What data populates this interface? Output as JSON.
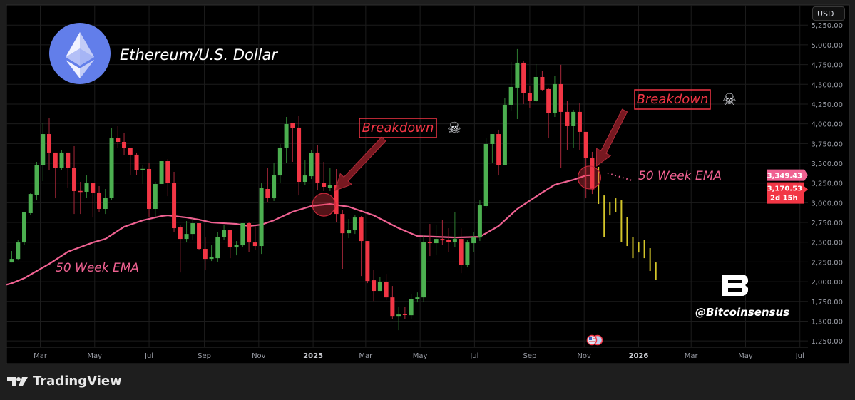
{
  "header": {
    "title": "Ethereum/U.S. Dollar",
    "currency_button": "USD"
  },
  "footer": {
    "brand": "TradingView"
  },
  "watermark": {
    "handle": "@Bitcoinsensus",
    "logo_letter": "B"
  },
  "chart_data": {
    "type": "candlestick",
    "title": "Ethereum/U.S. Dollar",
    "interval": "1W",
    "ylim": [
      1170,
      5505
    ],
    "xlim": [
      "2024-01-23",
      "2026-07-10"
    ],
    "grid": true,
    "yticks": [
      {
        "value": 1250,
        "label": "1,250.00"
      },
      {
        "value": 1500,
        "label": "1,500.00"
      },
      {
        "value": 1750,
        "label": "1,750.00"
      },
      {
        "value": 2000,
        "label": "2,000.00"
      },
      {
        "value": 2250,
        "label": "2,250.00"
      },
      {
        "value": 2500,
        "label": "2,500.00"
      },
      {
        "value": 2750,
        "label": "2,750.00"
      },
      {
        "value": 3000,
        "label": "3,000.00"
      },
      {
        "value": 3250,
        "label": "3,250.00"
      },
      {
        "value": 3500,
        "label": "3,500.00"
      },
      {
        "value": 3750,
        "label": "3,750.00"
      },
      {
        "value": 4000,
        "label": "4,000.00"
      },
      {
        "value": 4250,
        "label": "4,250.00"
      },
      {
        "value": 4500,
        "label": "4,500.00"
      },
      {
        "value": 4750,
        "label": "4,750.00"
      },
      {
        "value": 5000,
        "label": "5,000.00"
      },
      {
        "value": 5250,
        "label": "5,250.00"
      }
    ],
    "xticks": [
      {
        "date": "2024-03-01",
        "label": "Mar"
      },
      {
        "date": "2024-05-01",
        "label": "May"
      },
      {
        "date": "2024-07-01",
        "label": "Jul"
      },
      {
        "date": "2024-09-01",
        "label": "Sep"
      },
      {
        "date": "2024-11-01",
        "label": "Nov"
      },
      {
        "date": "2025-01-01",
        "label": "2025",
        "year": true
      },
      {
        "date": "2025-03-01",
        "label": "Mar"
      },
      {
        "date": "2025-05-01",
        "label": "May"
      },
      {
        "date": "2025-07-01",
        "label": "Jul"
      },
      {
        "date": "2025-09-01",
        "label": "Sep"
      },
      {
        "date": "2025-11-01",
        "label": "Nov"
      },
      {
        "date": "2026-01-01",
        "label": "2026",
        "year": true
      },
      {
        "date": "2026-03-01",
        "label": "Mar"
      },
      {
        "date": "2026-05-01",
        "label": "May"
      },
      {
        "date": "2026-07-01",
        "label": "Jul"
      }
    ],
    "candles": {
      "start": "2024-01-29",
      "ohlc_fields": [
        "open",
        "high",
        "low",
        "close"
      ],
      "ohlc": [
        [
          2244,
          2389,
          2244,
          2289
        ],
        [
          2289,
          2524,
          2271,
          2497
        ],
        [
          2497,
          2886,
          2470,
          2877
        ],
        [
          2868,
          3120,
          2849,
          3111
        ],
        [
          3102,
          3518,
          3030,
          3482
        ],
        [
          3482,
          4006,
          3274,
          3870
        ],
        [
          3870,
          4078,
          3410,
          3636
        ],
        [
          3636,
          3636,
          3057,
          3437
        ],
        [
          3446,
          3663,
          3419,
          3636
        ],
        [
          3636,
          3636,
          3193,
          3446
        ],
        [
          3437,
          3717,
          2858,
          3148
        ],
        [
          3150,
          3265,
          2858,
          3140
        ],
        [
          3139,
          3346,
          3066,
          3256
        ],
        [
          3247,
          3247,
          2813,
          3130
        ],
        [
          3130,
          3211,
          2877,
          2922
        ],
        [
          2922,
          3175,
          2858,
          3066
        ],
        [
          3066,
          3943,
          3039,
          3816
        ],
        [
          3816,
          3970,
          3699,
          3771
        ],
        [
          3771,
          3880,
          3600,
          3690
        ],
        [
          3690,
          3690,
          3355,
          3609
        ],
        [
          3609,
          3636,
          3355,
          3410
        ],
        [
          3410,
          3482,
          3238,
          3430
        ],
        [
          3428,
          3509,
          2822,
          2922
        ],
        [
          2922,
          3265,
          2822,
          3238
        ],
        [
          3238,
          3527,
          3238,
          3527
        ],
        [
          3527,
          3554,
          3084,
          3256
        ],
        [
          3256,
          3392,
          2633,
          2678
        ],
        [
          2687,
          2714,
          2117,
          2542
        ],
        [
          2542,
          2768,
          2497,
          2605
        ],
        [
          2605,
          2804,
          2533,
          2741
        ],
        [
          2741,
          2741,
          2398,
          2416
        ],
        [
          2416,
          2560,
          2145,
          2289
        ],
        [
          2289,
          2461,
          2262,
          2316
        ],
        [
          2298,
          2624,
          2253,
          2569
        ],
        [
          2569,
          2723,
          2533,
          2651
        ],
        [
          2651,
          2651,
          2298,
          2434
        ],
        [
          2434,
          2515,
          2334,
          2470
        ],
        [
          2461,
          2741,
          2443,
          2741
        ],
        [
          2741,
          2759,
          2379,
          2497
        ],
        [
          2497,
          2705,
          2407,
          2452
        ],
        [
          2452,
          3247,
          2352,
          3184
        ],
        [
          3175,
          3437,
          3012,
          3066
        ],
        [
          3057,
          3500,
          3021,
          3355
        ],
        [
          3346,
          3744,
          3247,
          3699
        ],
        [
          3699,
          4087,
          3500,
          3997
        ],
        [
          4006,
          4006,
          3518,
          3943
        ],
        [
          3952,
          4096,
          3093,
          3265
        ],
        [
          3265,
          3536,
          3220,
          3346
        ],
        [
          3337,
          3663,
          3301,
          3627
        ],
        [
          3636,
          3735,
          3157,
          3256
        ],
        [
          3256,
          3518,
          3148,
          3202
        ],
        [
          3193,
          3446,
          3148,
          3229
        ],
        [
          3220,
          3428,
          2750,
          2858
        ],
        [
          2858,
          2904,
          2163,
          2614
        ],
        [
          2614,
          2795,
          2551,
          2660
        ],
        [
          2651,
          2840,
          2605,
          2813
        ],
        [
          2813,
          2831,
          2072,
          2515
        ],
        [
          2515,
          2515,
          1982,
          2009
        ],
        [
          2018,
          2153,
          1756,
          1883
        ],
        [
          1883,
          2063,
          1883,
          2000
        ],
        [
          2000,
          2099,
          1765,
          1801
        ],
        [
          1801,
          1946,
          1530,
          1566
        ],
        [
          1566,
          1684,
          1386,
          1584
        ],
        [
          1590,
          1684,
          1530,
          1580
        ],
        [
          1575,
          1846,
          1530,
          1783
        ],
        [
          1783,
          1864,
          1738,
          1801
        ],
        [
          1801,
          2596,
          1747,
          2506
        ],
        [
          2506,
          2732,
          2325,
          2488
        ],
        [
          2488,
          2723,
          2343,
          2542
        ],
        [
          2542,
          2786,
          2470,
          2524
        ],
        [
          2533,
          2678,
          2379,
          2506
        ],
        [
          2506,
          2877,
          2434,
          2542
        ],
        [
          2542,
          2678,
          2108,
          2217
        ],
        [
          2217,
          2524,
          2181,
          2497
        ],
        [
          2488,
          2624,
          2379,
          2560
        ],
        [
          2560,
          3030,
          2515,
          2967
        ],
        [
          2958,
          3816,
          2931,
          3744
        ],
        [
          3744,
          3870,
          3509,
          3870
        ],
        [
          3870,
          3925,
          3346,
          3482
        ],
        [
          3482,
          4322,
          3482,
          4241
        ],
        [
          4241,
          4783,
          4169,
          4467
        ],
        [
          4458,
          4946,
          4060,
          4774
        ],
        [
          4774,
          4792,
          4250,
          4386
        ],
        [
          4386,
          4485,
          4205,
          4295
        ],
        [
          4295,
          4756,
          4277,
          4593
        ],
        [
          4593,
          4666,
          4422,
          4431
        ],
        [
          4440,
          4458,
          3825,
          4133
        ],
        [
          4133,
          4611,
          4087,
          4503
        ],
        [
          4503,
          4747,
          3437,
          4151
        ],
        [
          4151,
          4286,
          3672,
          3970
        ],
        [
          3970,
          4178,
          3699,
          4151
        ],
        [
          4151,
          4259,
          3672,
          3898
        ],
        [
          3898,
          3898,
          3057,
          3572
        ],
        [
          3572,
          3645,
          3111,
          3170.53
        ]
      ]
    },
    "ema": {
      "label": "50 Week EMA",
      "points": [
        [
          "2024-01-29",
          1980
        ],
        [
          "2024-02-12",
          2045
        ],
        [
          "2024-03-11",
          2226
        ],
        [
          "2024-04-01",
          2380
        ],
        [
          "2024-04-29",
          2497
        ],
        [
          "2024-05-13",
          2542
        ],
        [
          "2024-06-03",
          2696
        ],
        [
          "2024-06-24",
          2777
        ],
        [
          "2024-07-15",
          2831
        ],
        [
          "2024-07-22",
          2840
        ],
        [
          "2024-08-12",
          2813
        ],
        [
          "2024-08-26",
          2786
        ],
        [
          "2024-09-09",
          2750
        ],
        [
          "2024-10-07",
          2732
        ],
        [
          "2024-10-21",
          2705
        ],
        [
          "2024-11-04",
          2723
        ],
        [
          "2024-11-18",
          2777
        ],
        [
          "2024-12-09",
          2886
        ],
        [
          "2024-12-30",
          2958
        ],
        [
          "2025-01-20",
          2985
        ],
        [
          "2025-02-10",
          2949
        ],
        [
          "2025-03-10",
          2840
        ],
        [
          "2025-04-07",
          2678
        ],
        [
          "2025-04-28",
          2578
        ],
        [
          "2025-06-09",
          2560
        ],
        [
          "2025-07-07",
          2569
        ],
        [
          "2025-07-28",
          2705
        ],
        [
          "2025-08-18",
          2922
        ],
        [
          "2025-09-15",
          3130
        ],
        [
          "2025-09-29",
          3229
        ],
        [
          "2025-10-20",
          3292
        ],
        [
          "2025-11-03",
          3346
        ],
        [
          "2025-11-10",
          3349.43
        ]
      ]
    },
    "projection": {
      "start": "2025-11-17",
      "ranges_high_low": [
        [
          3455,
          2985
        ],
        [
          3093,
          2569
        ],
        [
          3012,
          2840
        ],
        [
          3057,
          2877
        ],
        [
          3030,
          2506
        ],
        [
          2822,
          2452
        ],
        [
          2569,
          2298
        ],
        [
          2506,
          2370
        ],
        [
          2533,
          2298
        ],
        [
          2425,
          2136
        ],
        [
          2244,
          2027
        ]
      ]
    },
    "ema_price_label": {
      "value": 3349.43,
      "text": "3,349.43"
    },
    "last_price_label": {
      "value": 3170.53,
      "text": "3,170.53",
      "countdown": "2d 15h"
    },
    "annotations": [
      {
        "text": "Breakdown",
        "target_date": "2025-01-13",
        "target_price": 2975,
        "icon": "skull-crossbones-icon"
      },
      {
        "text": "Breakdown",
        "target_date": "2025-11-10",
        "target_price": 3320,
        "icon": "skull-crossbones-icon"
      }
    ],
    "colors": {
      "up": "#4caf50",
      "down": "#f23645",
      "ema": "#f06292",
      "projection": "#d4c62a",
      "background": "#000000",
      "eth_logo": "#627eea"
    }
  }
}
